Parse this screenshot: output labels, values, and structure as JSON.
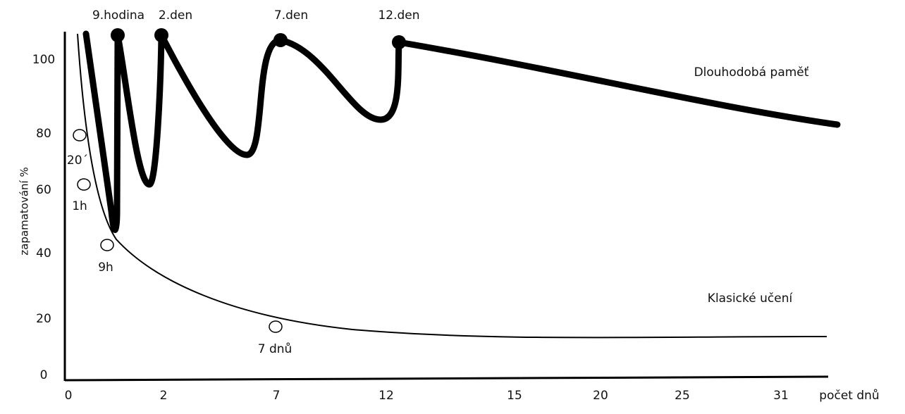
{
  "y_axis": {
    "label": "zapamatování %",
    "ticks": [
      "100",
      "80",
      "60",
      "40",
      "20",
      "0"
    ]
  },
  "x_axis": {
    "label": "počet dnů",
    "ticks": [
      "0",
      "2",
      "7",
      "12",
      "15",
      "20",
      "25",
      "31"
    ]
  },
  "peaks": [
    "9.hodina",
    "2.den",
    "7.den",
    "12.den"
  ],
  "markers": [
    "20´",
    "1h",
    "9h",
    "7 dnů"
  ],
  "curves": [
    "Dlouhodobá paměť",
    "Klasické učení"
  ]
}
